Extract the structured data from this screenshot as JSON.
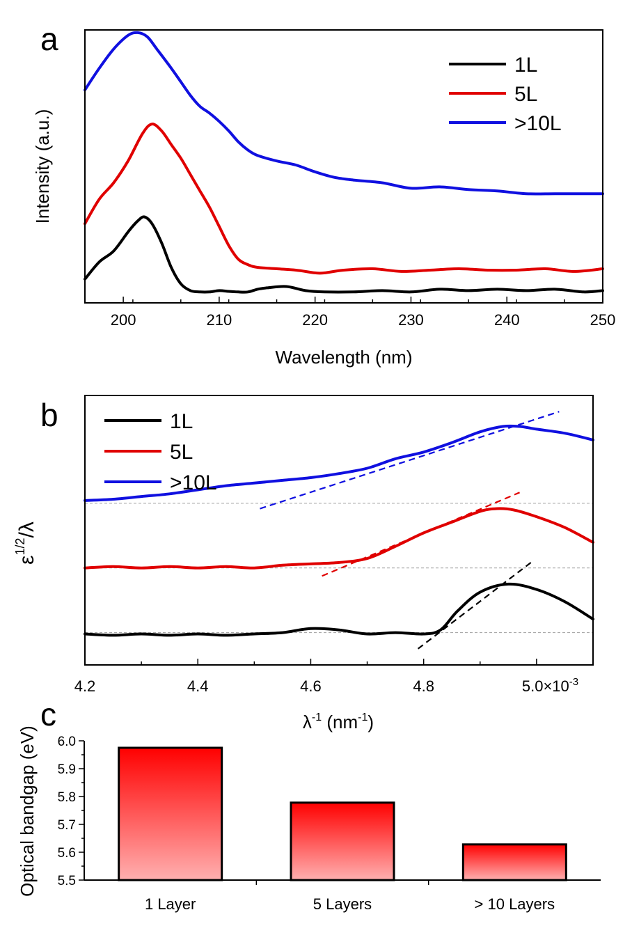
{
  "chart_data": [
    {
      "panel": "a",
      "type": "line",
      "xlabel": "Wavelength (nm)",
      "ylabel": "Intensity (a.u.)",
      "xlim": [
        196,
        250
      ],
      "ylim": [
        0,
        1
      ],
      "xticks": [
        200,
        210,
        220,
        230,
        240,
        250
      ],
      "yticks_shown": false,
      "legend": "top-right",
      "series": [
        {
          "name": "1L",
          "color": "#000000",
          "x": [
            196,
            197.5,
            199,
            200.5,
            201.5,
            202.2,
            203,
            204,
            205,
            206,
            207,
            208,
            209,
            210,
            211,
            212,
            213,
            214,
            215,
            217,
            219,
            221,
            224,
            227,
            230,
            233,
            236,
            239,
            242,
            245,
            248,
            250
          ],
          "y": [
            0.087,
            0.15,
            0.19,
            0.26,
            0.3,
            0.315,
            0.29,
            0.22,
            0.13,
            0.07,
            0.045,
            0.04,
            0.04,
            0.045,
            0.042,
            0.04,
            0.04,
            0.05,
            0.055,
            0.06,
            0.045,
            0.04,
            0.04,
            0.045,
            0.04,
            0.05,
            0.045,
            0.05,
            0.045,
            0.05,
            0.04,
            0.045
          ]
        },
        {
          "name": "5L",
          "color": "#e00000",
          "x": [
            196,
            197.5,
            199,
            200.5,
            202,
            203,
            204,
            205,
            206,
            207,
            208,
            209,
            210,
            211,
            212,
            213,
            214,
            216,
            218,
            220,
            221,
            223,
            226,
            229,
            232,
            235,
            238,
            241,
            244,
            247,
            250
          ],
          "y": [
            0.29,
            0.38,
            0.44,
            0.52,
            0.62,
            0.655,
            0.63,
            0.58,
            0.53,
            0.47,
            0.41,
            0.35,
            0.28,
            0.21,
            0.16,
            0.14,
            0.13,
            0.125,
            0.12,
            0.11,
            0.11,
            0.12,
            0.125,
            0.115,
            0.12,
            0.125,
            0.12,
            0.12,
            0.125,
            0.115,
            0.125
          ]
        },
        {
          "name": ">10L",
          "color": "#1010e0",
          "x": [
            196,
            197.5,
            199,
            200.5,
            201.5,
            202.5,
            203.5,
            205,
            206,
            207,
            208,
            209,
            210,
            211,
            212,
            213,
            214,
            216,
            218,
            220,
            222,
            224,
            227,
            230,
            233,
            236,
            239,
            242,
            245,
            248,
            250
          ],
          "y": [
            0.78,
            0.86,
            0.93,
            0.98,
            0.99,
            0.975,
            0.93,
            0.86,
            0.81,
            0.76,
            0.72,
            0.695,
            0.665,
            0.63,
            0.59,
            0.56,
            0.54,
            0.52,
            0.505,
            0.48,
            0.46,
            0.45,
            0.44,
            0.42,
            0.425,
            0.415,
            0.41,
            0.4,
            0.4,
            0.4,
            0.4
          ]
        }
      ]
    },
    {
      "panel": "b",
      "type": "line",
      "xlabel_base": "λ",
      "xlabel_sup1": "-1",
      "xlabel_mid": " (nm",
      "xlabel_sup2": "-1",
      "xlabel_end": ")",
      "ylabel_base": "ε",
      "ylabel_sup": "1/2",
      "ylabel_end": "/λ",
      "xlim": [
        4.2,
        5.1
      ],
      "ylim": [
        0,
        1
      ],
      "xticks": [
        4.2,
        4.4,
        4.6,
        4.8
      ],
      "xtick_labels": [
        "4.2",
        "4.4",
        "4.6",
        "4.8"
      ],
      "xtick_last_value": 5.0,
      "xtick_last_label": "5.0×10",
      "xtick_last_exponent": "-3",
      "yticks_shown": false,
      "legend": "top-left",
      "series": [
        {
          "name": "1L",
          "color": "#000000",
          "x": [
            4.2,
            4.25,
            4.3,
            4.35,
            4.4,
            4.45,
            4.5,
            4.55,
            4.6,
            4.65,
            4.7,
            4.75,
            4.8,
            4.83,
            4.86,
            4.9,
            4.95,
            5.0,
            5.05,
            5.1
          ],
          "y": [
            0.115,
            0.11,
            0.115,
            0.11,
            0.115,
            0.11,
            0.115,
            0.12,
            0.135,
            0.13,
            0.115,
            0.12,
            0.115,
            0.13,
            0.2,
            0.27,
            0.3,
            0.28,
            0.235,
            0.17
          ]
        },
        {
          "name": "5L",
          "color": "#e00000",
          "x": [
            4.2,
            4.25,
            4.3,
            4.35,
            4.4,
            4.45,
            4.5,
            4.55,
            4.6,
            4.65,
            4.7,
            4.75,
            4.8,
            4.85,
            4.9,
            4.93,
            4.96,
            5.0,
            5.05,
            5.1
          ],
          "y": [
            0.36,
            0.365,
            0.36,
            0.365,
            0.36,
            0.365,
            0.36,
            0.37,
            0.375,
            0.38,
            0.395,
            0.44,
            0.49,
            0.53,
            0.57,
            0.58,
            0.575,
            0.55,
            0.51,
            0.455
          ]
        },
        {
          "name": ">10L",
          "color": "#1010e0",
          "x": [
            4.2,
            4.25,
            4.3,
            4.35,
            4.4,
            4.45,
            4.5,
            4.55,
            4.6,
            4.65,
            4.7,
            4.75,
            4.8,
            4.85,
            4.9,
            4.94,
            4.97,
            5.0,
            5.05,
            5.1
          ],
          "y": [
            0.61,
            0.615,
            0.625,
            0.635,
            0.65,
            0.665,
            0.675,
            0.685,
            0.695,
            0.71,
            0.73,
            0.765,
            0.79,
            0.825,
            0.865,
            0.885,
            0.885,
            0.875,
            0.86,
            0.835
          ]
        }
      ],
      "baselines": [
        {
          "color": "#aaaaaa",
          "y": 0.12
        },
        {
          "color": "#aaaaaa",
          "y": 0.36
        },
        {
          "color": "#aaaaaa",
          "y": 0.6
        }
      ],
      "fit_lines": [
        {
          "color": "#000000",
          "x": [
            4.79,
            4.99
          ],
          "y": [
            0.06,
            0.38
          ]
        },
        {
          "color": "#e00000",
          "x": [
            4.62,
            4.97
          ],
          "y": [
            0.33,
            0.64
          ]
        },
        {
          "color": "#1010e0",
          "x": [
            4.51,
            5.04
          ],
          "y": [
            0.58,
            0.94
          ]
        }
      ]
    },
    {
      "panel": "c",
      "type": "bar",
      "ylabel": "Optical bandgap (eV)",
      "categories": [
        "1 Layer",
        "5 Layers",
        "> 10 Layers"
      ],
      "values": [
        5.975,
        5.778,
        5.628
      ],
      "ylim": [
        5.5,
        6.0
      ],
      "yticks": [
        5.5,
        5.6,
        5.7,
        5.8,
        5.9,
        6.0
      ],
      "ytick_labels": [
        "5.5",
        "5.6",
        "5.7",
        "5.8",
        "5.9",
        "6.0"
      ],
      "bar_color_top": "#ff0000",
      "bar_color_bottom": "#ffb0b0",
      "edge_color": "#000000"
    }
  ]
}
